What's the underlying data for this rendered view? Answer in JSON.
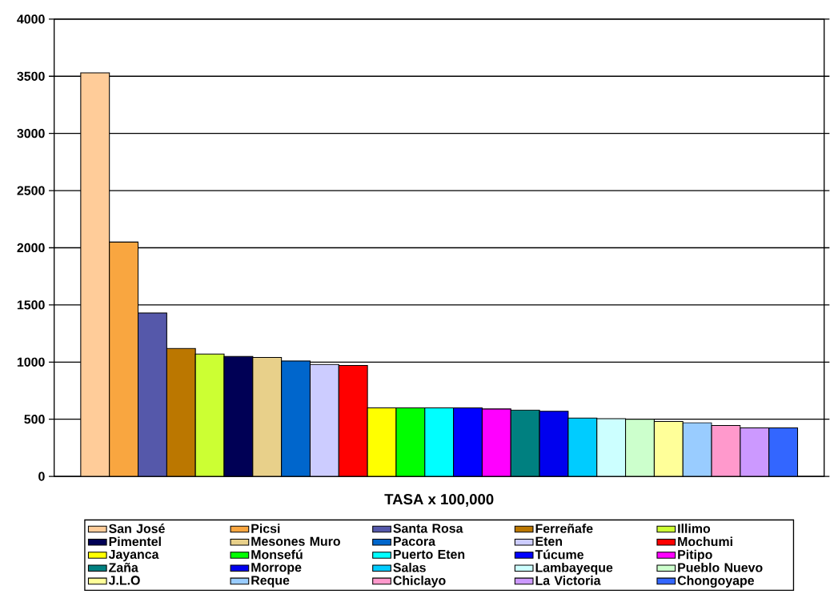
{
  "chart_data": {
    "type": "bar",
    "xlabel": "TASA x 100,000",
    "categories": [
      null
    ],
    "ylim": [
      0,
      4000
    ],
    "yticks": [
      0,
      500,
      1000,
      1500,
      2000,
      2500,
      3000,
      3500,
      4000
    ],
    "grid": "y",
    "legend": "bottom",
    "series": [
      {
        "name": "San José",
        "color": "#ffcc99",
        "values": [
          3530
        ]
      },
      {
        "name": "Picsi",
        "color": "#f9a640",
        "values": [
          2050
        ]
      },
      {
        "name": "Santa Rosa",
        "color": "#5558aa",
        "values": [
          1430
        ]
      },
      {
        "name": "Ferreñafe",
        "color": "#bb7700",
        "values": [
          1120
        ]
      },
      {
        "name": "Illimo",
        "color": "#ccff33",
        "values": [
          1070
        ]
      },
      {
        "name": "Pimentel",
        "color": "#000055",
        "values": [
          1050
        ]
      },
      {
        "name": "Mesones Muro",
        "color": "#e8d08a",
        "values": [
          1040
        ]
      },
      {
        "name": "Pacora",
        "color": "#0066cc",
        "values": [
          1010
        ]
      },
      {
        "name": "Eten",
        "color": "#ccccff",
        "values": [
          980
        ]
      },
      {
        "name": "Mochumi",
        "color": "#ff0000",
        "values": [
          970
        ]
      },
      {
        "name": "Jayanca",
        "color": "#ffff00",
        "values": [
          600
        ]
      },
      {
        "name": "Monsefú",
        "color": "#00ff00",
        "values": [
          600
        ]
      },
      {
        "name": "Puerto Eten",
        "color": "#00ffff",
        "values": [
          600
        ]
      },
      {
        "name": "Túcume",
        "color": "#0000ff",
        "values": [
          600
        ]
      },
      {
        "name": "Pitipo",
        "color": "#ff00ff",
        "values": [
          590
        ]
      },
      {
        "name": "Zaña",
        "color": "#008080",
        "values": [
          580
        ]
      },
      {
        "name": "Morrope",
        "color": "#0000ee",
        "values": [
          570
        ]
      },
      {
        "name": "Salas",
        "color": "#00ccff",
        "values": [
          510
        ]
      },
      {
        "name": "Lambayeque",
        "color": "#ccffff",
        "values": [
          505
        ]
      },
      {
        "name": "Pueblo Nuevo",
        "color": "#ccffcc",
        "values": [
          500
        ]
      },
      {
        "name": "J.L.O",
        "color": "#ffff99",
        "values": [
          480
        ]
      },
      {
        "name": "Reque",
        "color": "#99ccff",
        "values": [
          470
        ]
      },
      {
        "name": "Chiclayo",
        "color": "#ff99cc",
        "values": [
          445
        ]
      },
      {
        "name": "La Victoria",
        "color": "#cc99ff",
        "values": [
          425
        ]
      },
      {
        "name": "Chongoyape",
        "color": "#3366ff",
        "values": [
          425
        ]
      }
    ]
  }
}
